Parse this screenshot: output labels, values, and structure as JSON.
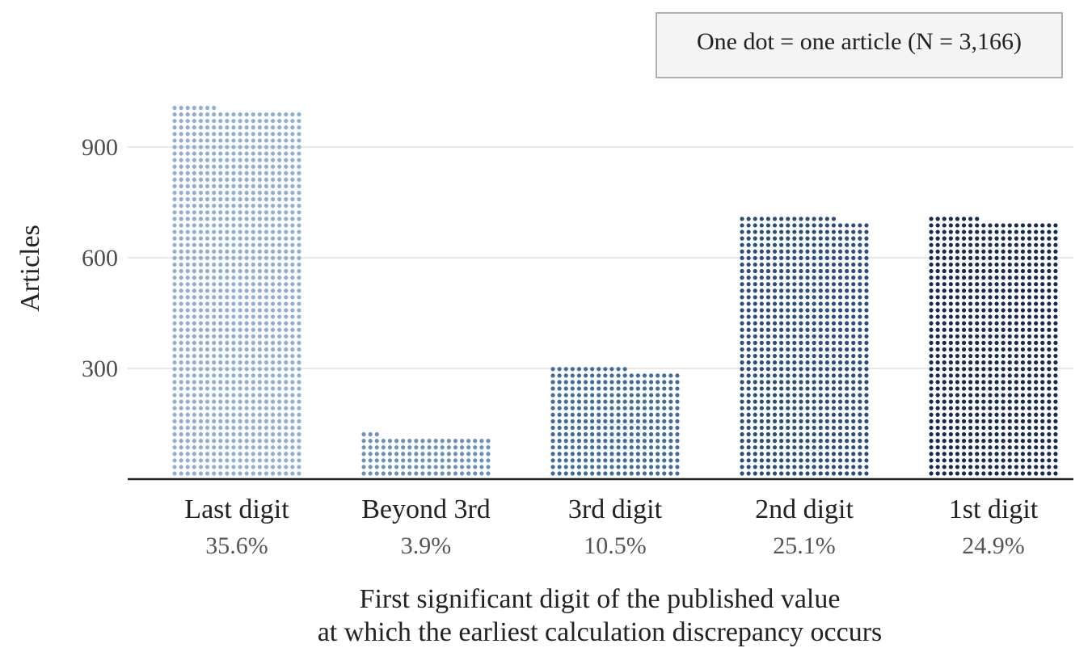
{
  "chart_data": {
    "type": "bar",
    "style": "dot-waffle",
    "categories": [
      "Last digit",
      "Beyond 3rd",
      "3rd digit",
      "2nd digit",
      "1st digit"
    ],
    "values": [
      1127,
      123,
      332,
      795,
      788
    ],
    "percent_labels": [
      "35.6%",
      "3.9%",
      "10.5%",
      "25.1%",
      "24.9%"
    ],
    "colors": [
      "#8fb0d2",
      "#6b92ba",
      "#3f6d9e",
      "#2a4f7e",
      "#142b52"
    ],
    "ylabel": "Articles",
    "xlabel_lines": [
      "First significant digit of the published value",
      "at which the earliest calculation discrepancy occurs"
    ],
    "yticks": [
      300,
      600,
      900
    ],
    "ylim": [
      0,
      1230
    ],
    "grid": true,
    "legend_note": "One dot = one article (N = 3,166)",
    "legend_position": "top-right"
  }
}
